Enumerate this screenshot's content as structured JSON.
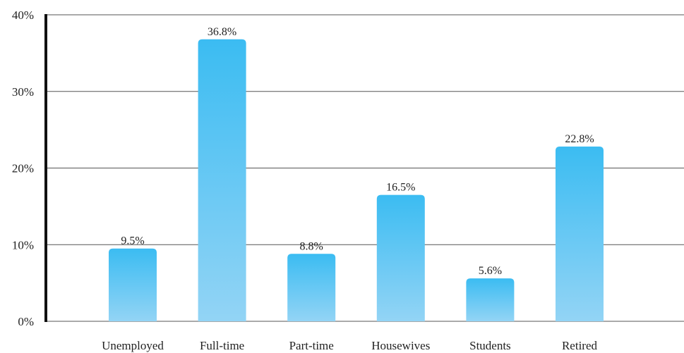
{
  "chart_data": {
    "type": "bar",
    "title": "",
    "xlabel": "",
    "ylabel": "",
    "categories": [
      "Unemployed",
      "Full-time",
      "Part-time",
      "Housewives",
      "Students",
      "Retired"
    ],
    "values": [
      9.5,
      36.8,
      8.8,
      16.5,
      5.6,
      22.8
    ],
    "value_labels": [
      "9.5%",
      "36.8%",
      "8.8%",
      "16.5%",
      "5.6%",
      "22.8%"
    ],
    "ylim": [
      0,
      40
    ],
    "yticks": [
      0,
      10,
      20,
      30,
      40
    ],
    "ytick_labels": [
      "0%",
      "10%",
      "20%",
      "30%",
      "40%"
    ],
    "grid": true,
    "legend": "none",
    "colors": {
      "bar_top": "#3bbcf2",
      "bar_bottom": "#93d4f5",
      "axis": "#111111",
      "grid": "#555555",
      "text": "#222222"
    }
  }
}
